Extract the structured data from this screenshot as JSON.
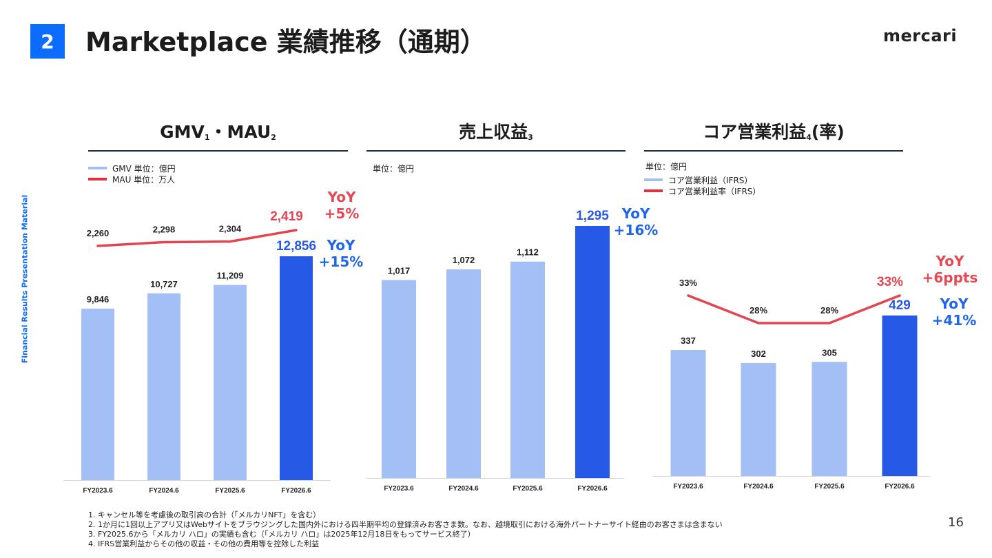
{
  "header": {
    "section_number": "2",
    "title": "Marketplace 業績推移（通期）",
    "logo_text": "mercari",
    "side_label": "Financial Results Presentation Material"
  },
  "panels": [
    {
      "title": "GMV",
      "title_sub1": "1",
      "title_mid": "・MAU",
      "title_sub2": "2",
      "legend": [
        {
          "label": "GMV 単位：億円",
          "color": "#a3bff5"
        },
        {
          "label": "MAU 単位：万人",
          "color": "#e3303c"
        }
      ],
      "callouts": [
        {
          "line1": "YoY",
          "line2": "+5%",
          "color": "#e34a53"
        },
        {
          "line1": "YoY",
          "line2": "+15%",
          "color": "#1f67e8"
        }
      ]
    },
    {
      "title": "売上収益",
      "title_sub1": "3",
      "unit": "単位：億円",
      "callouts": [
        {
          "line1": "YoY",
          "line2": "+16%",
          "color": "#1f67e8"
        }
      ]
    },
    {
      "title": "コア営業利益",
      "title_sub1": "4",
      "title_tail": "(率)",
      "unit": "単位：億円",
      "legend": [
        {
          "label": "コア営業利益（IFRS）",
          "color": "#a3bff5"
        },
        {
          "label": "コア営業利益率（IFRS）",
          "color": "#e3303c"
        }
      ],
      "callouts": [
        {
          "line1": "YoY",
          "line2": "+6ppts",
          "color": "#e34a53"
        },
        {
          "line1": "YoY",
          "line2": "+41%",
          "color": "#1f67e8"
        }
      ]
    }
  ],
  "chart_data": [
    {
      "type": "bar",
      "categories": [
        "FY2023.6",
        "FY2024.6",
        "FY2025.6",
        "FY2026.6"
      ],
      "series": [
        {
          "name": "GMV",
          "values": [
            9846,
            10727,
            11209,
            12856
          ],
          "labels": [
            "9,846",
            "10,727",
            "11,209",
            "12,856"
          ],
          "color": "#a3bff5",
          "highlight_color": "#2659e6"
        },
        {
          "name": "MAU",
          "type": "line",
          "values": [
            2260,
            2298,
            2304,
            2419
          ],
          "labels": [
            "2,260",
            "2,298",
            "2,304",
            "2,419"
          ],
          "color": "#e3444f"
        }
      ],
      "grid": false
    },
    {
      "type": "bar",
      "categories": [
        "FY2023.6",
        "FY2024.6",
        "FY2025.6",
        "FY2026.6"
      ],
      "series": [
        {
          "values": [
            1017,
            1072,
            1112,
            1295
          ],
          "labels": [
            "1,017",
            "1,072",
            "1,112",
            "1,295"
          ],
          "color": "#a3bff5",
          "highlight_color": "#2659e6"
        }
      ],
      "grid": false
    },
    {
      "type": "bar",
      "categories": [
        "FY2023.6",
        "FY2024.6",
        "FY2025.6",
        "FY2026.6"
      ],
      "series": [
        {
          "name": "コア営業利益",
          "values": [
            337,
            302,
            305,
            429
          ],
          "labels": [
            "337",
            "302",
            "305",
            "429"
          ],
          "color": "#a3bff5",
          "highlight_color": "#2659e6"
        },
        {
          "name": "コア営業利益率",
          "type": "line",
          "values": [
            33,
            28,
            28,
            33
          ],
          "labels": [
            "33%",
            "28%",
            "28%",
            "33%"
          ],
          "color": "#e3444f"
        }
      ],
      "grid": false
    }
  ],
  "footnotes": [
    "1. キャンセル等を考慮後の取引高の合計（「メルカリNFT」を含む）",
    "2. 1か月に1回以上アプリ又はWebサイトをブラウジングした国内外における四半期平均の登録済みお客さま数。なお、越境取引における海外パートナーサイト経由のお客さまは含まない",
    "3. FY2025.6から「メルカリ ハロ」の実績も含む（「メルカリ ハロ」は2025年12月18日をもってサービス終了）",
    "4. IFRS営業利益からその他の収益・その他の費用等を控除した利益"
  ],
  "page_number": "16"
}
